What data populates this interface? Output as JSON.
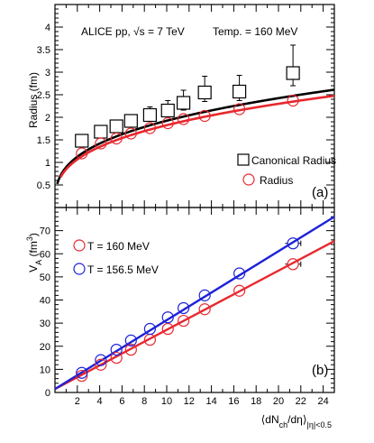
{
  "chart_data": [
    {
      "type": "scatter",
      "panel": "a",
      "panel_label": "(a)",
      "annotations": {
        "collision": "ALICE pp, √s = 7 TeV",
        "temperature": "Temp. = 160 MeV"
      },
      "ylabel": "Radius (fm)",
      "xlim": [
        0,
        25
      ],
      "ylim": [
        0,
        4.5
      ],
      "y_ticks": [
        "0.5",
        "1",
        "1.5",
        "2",
        "2.5",
        "3",
        "3.5",
        "4"
      ],
      "legend_position": "bottom-right",
      "x": [
        2.4,
        4.1,
        5.5,
        6.8,
        8.5,
        10.1,
        11.5,
        13.4,
        16.5,
        21.3
      ],
      "series": [
        {
          "name": "Canonical Radius",
          "marker": "open-square",
          "color": "#000000",
          "values": [
            1.48,
            1.68,
            1.8,
            1.92,
            2.05,
            2.15,
            2.32,
            2.55,
            2.57,
            2.98
          ],
          "err_up": [
            0.08,
            0.1,
            0.12,
            0.14,
            0.18,
            0.22,
            0.28,
            0.36,
            0.36,
            0.62
          ],
          "err_down": [
            0.06,
            0.08,
            0.08,
            0.1,
            0.12,
            0.14,
            0.16,
            0.2,
            0.2,
            0.28
          ]
        },
        {
          "name": "Radius",
          "marker": "open-circle",
          "color": "#e8282e",
          "values": [
            1.2,
            1.42,
            1.53,
            1.64,
            1.76,
            1.87,
            1.96,
            2.03,
            2.18,
            2.37
          ],
          "err_up": [
            0.03,
            0.03,
            0.03,
            0.03,
            0.04,
            0.04,
            0.04,
            0.05,
            0.05,
            0.06
          ],
          "err_down": [
            0.03,
            0.03,
            0.03,
            0.03,
            0.04,
            0.04,
            0.04,
            0.05,
            0.05,
            0.06
          ]
        }
      ],
      "curves": [
        {
          "color": "#000000",
          "form": "a*x^(1/3)",
          "a": 0.893,
          "x_from": 0.2
        },
        {
          "color": "#e8282e",
          "form": "a*x^(1/3)",
          "a": 0.847,
          "x_from": 0.5
        }
      ]
    },
    {
      "type": "scatter",
      "panel": "b",
      "panel_label": "(b)",
      "ylabel": "V",
      "ylabel_sub": "A",
      "ylabel_unit_open": " (fm",
      "ylabel_unit_sup": "3",
      "ylabel_unit_close": ")",
      "xlabel_parts": {
        "open": "⟨dN",
        "sub1": "ch",
        "mid": "/dη⟩",
        "sub2": "|η|<0.5"
      },
      "xlim": [
        0,
        25
      ],
      "ylim": [
        0,
        80
      ],
      "x_ticks": [
        "2",
        "4",
        "6",
        "8",
        "10",
        "12",
        "14",
        "16",
        "18",
        "20",
        "22",
        "24"
      ],
      "y_ticks": [
        "0",
        "10",
        "20",
        "30",
        "40",
        "50",
        "60",
        "70"
      ],
      "legend_position": "top-left",
      "x": [
        2.4,
        4.1,
        5.5,
        6.8,
        8.5,
        10.1,
        11.5,
        13.4,
        16.5,
        21.3
      ],
      "series": [
        {
          "name": "T = 160 MeV",
          "marker": "open-circle",
          "color": "#e8282e",
          "values": [
            7.2,
            12.0,
            15.0,
            18.5,
            22.8,
            27.5,
            31.0,
            36.0,
            44.0,
            55.5
          ],
          "xerr": [
            0.1,
            0.1,
            0.1,
            0.15,
            0.15,
            0.2,
            0.2,
            0.25,
            0.3,
            0.7
          ]
        },
        {
          "name": "T = 156.5 MeV",
          "marker": "open-circle",
          "color": "#1d22d8",
          "values": [
            8.5,
            14.0,
            18.5,
            22.5,
            27.5,
            32.5,
            36.5,
            42.0,
            51.5,
            64.5
          ],
          "xerr": [
            0.1,
            0.1,
            0.1,
            0.15,
            0.15,
            0.2,
            0.2,
            0.25,
            0.3,
            0.7
          ]
        }
      ],
      "lines": [
        {
          "color": "#e8282e",
          "x": [
            0,
            25
          ],
          "y": [
            1.5,
            65.5
          ]
        },
        {
          "color": "#1d22d8",
          "x": [
            0,
            25
          ],
          "y": [
            1.5,
            76.0
          ]
        }
      ]
    }
  ]
}
